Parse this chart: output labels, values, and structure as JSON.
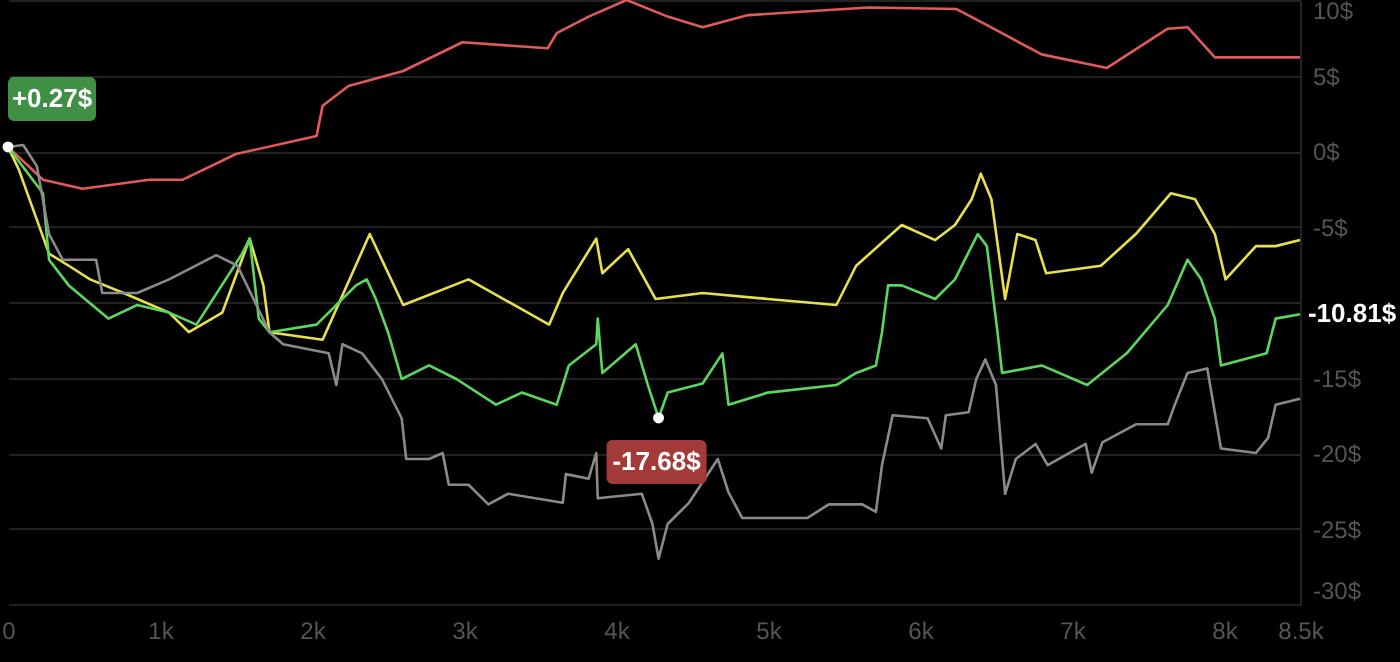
{
  "chart_data": {
    "type": "line",
    "xlim": [
      0,
      8500
    ],
    "xticks": [
      {
        "value": 0,
        "label": "0"
      },
      {
        "value": 1000,
        "label": "1k"
      },
      {
        "value": 2000,
        "label": "2k"
      },
      {
        "value": 3000,
        "label": "3k"
      },
      {
        "value": 4000,
        "label": "4k"
      },
      {
        "value": 5000,
        "label": "5k"
      },
      {
        "value": 6000,
        "label": "6k"
      },
      {
        "value": 7000,
        "label": "7k"
      },
      {
        "value": 8000,
        "label": "8k"
      },
      {
        "value": 8500,
        "label": "8.5k"
      }
    ],
    "ylim": [
      -30,
      10
    ],
    "yticks": [
      {
        "value": -30,
        "label": "-30$"
      },
      {
        "value": -25,
        "label": "-25$"
      },
      {
        "value": -20,
        "label": "-20$"
      },
      {
        "value": -15,
        "label": "-15$"
      },
      {
        "value": -10,
        "label": null
      },
      {
        "value": -5,
        "label": "-5$"
      },
      {
        "value": 0,
        "label": "0$"
      },
      {
        "value": 5,
        "label": "5$"
      },
      {
        "value": 10,
        "label": "10$"
      }
    ],
    "grid": "y",
    "series": [
      {
        "color": "#e05a5a",
        "x": [
          0,
          230,
          490,
          930,
          1150,
          1500,
          2030,
          2070,
          2240,
          2600,
          2990,
          3550,
          3610,
          3820,
          4070,
          4340,
          4570,
          4870,
          5660,
          6240,
          6410,
          6800,
          7230,
          7630,
          7760,
          7940,
          8500
        ],
        "values": [
          0.27,
          -1.9,
          -2.5,
          -1.9,
          -1.9,
          -0.2,
          1.0,
          3.0,
          4.3,
          5.3,
          7.2,
          6.8,
          7.8,
          8.9,
          10.0,
          8.9,
          8.2,
          9.0,
          9.5,
          9.4,
          8.5,
          6.4,
          5.5,
          8.1,
          8.2,
          6.2,
          6.2
        ]
      },
      {
        "color": "#e8e04a",
        "x": [
          0,
          70,
          270,
          400,
          540,
          760,
          1060,
          1190,
          1410,
          1590,
          1680,
          1720,
          2070,
          2380,
          2600,
          3030,
          3560,
          3650,
          3870,
          3910,
          4080,
          4260,
          4570,
          5000,
          5450,
          5580,
          5880,
          6100,
          6230,
          6340,
          6400,
          6470,
          6560,
          6640,
          6760,
          6830,
          7190,
          7420,
          7650,
          7810,
          7940,
          8010,
          8210,
          8340,
          8500
        ],
        "values": [
          0.27,
          -1.2,
          -6.8,
          -7.6,
          -8.5,
          -9.4,
          -10.7,
          -12.0,
          -10.7,
          -5.8,
          -8.9,
          -12.0,
          -12.5,
          -5.5,
          -10.2,
          -8.5,
          -11.5,
          -9.4,
          -5.8,
          -8.1,
          -6.5,
          -9.8,
          -9.4,
          -9.8,
          -10.2,
          -7.6,
          -4.9,
          -5.9,
          -4.9,
          -3.2,
          -1.5,
          -3.2,
          -9.8,
          -5.5,
          -5.9,
          -8.1,
          -7.6,
          -5.5,
          -2.8,
          -3.2,
          -5.5,
          -8.5,
          -6.3,
          -6.3,
          -5.9
        ]
      },
      {
        "color": "#5cd65c",
        "x": [
          0,
          230,
          270,
          400,
          660,
          850,
          1060,
          1240,
          1540,
          1590,
          1650,
          1720,
          2030,
          2290,
          2360,
          2420,
          2500,
          2590,
          2770,
          2950,
          3210,
          3380,
          3610,
          3690,
          3870,
          3880,
          3910,
          4130,
          4210,
          4280,
          4340,
          4570,
          4700,
          4740,
          5000,
          5450,
          5580,
          5710,
          5750,
          5790,
          5880,
          6100,
          6230,
          6380,
          6440,
          6510,
          6540,
          6800,
          7100,
          7360,
          7630,
          7760,
          7850,
          7940,
          7980,
          8280,
          8340,
          8500
        ],
        "values": [
          0.27,
          -2.8,
          -7.2,
          -8.9,
          -11.1,
          -10.2,
          -10.7,
          -11.5,
          -6.8,
          -5.8,
          -11.1,
          -12.0,
          -11.5,
          -8.9,
          -8.5,
          -9.8,
          -12.0,
          -15.1,
          -14.2,
          -15.1,
          -16.8,
          -16.0,
          -16.8,
          -14.2,
          -12.8,
          -11.1,
          -14.7,
          -12.8,
          -15.5,
          -17.68,
          -16.0,
          -15.4,
          -13.4,
          -16.8,
          -16.0,
          -15.5,
          -14.7,
          -14.2,
          -12.0,
          -8.9,
          -8.9,
          -9.8,
          -8.5,
          -5.5,
          -6.3,
          -12.0,
          -14.7,
          -14.2,
          -15.5,
          -13.4,
          -10.2,
          -7.2,
          -8.5,
          -11.1,
          -14.2,
          -13.4,
          -11.1,
          -10.81
        ]
      },
      {
        "color": "#8a8a8a",
        "x": [
          0,
          100,
          190,
          270,
          360,
          580,
          620,
          850,
          1060,
          1370,
          1510,
          1720,
          1810,
          2110,
          2160,
          2200,
          2330,
          2460,
          2590,
          2620,
          2770,
          2860,
          2900,
          3030,
          3160,
          3290,
          3650,
          3670,
          3820,
          3870,
          3880,
          4170,
          4240,
          4280,
          4340,
          4480,
          4670,
          4740,
          4830,
          5260,
          5400,
          5620,
          5710,
          5750,
          5820,
          6050,
          6140,
          6170,
          6320,
          6370,
          6430,
          6500,
          6560,
          6630,
          6760,
          6840,
          7090,
          7130,
          7200,
          7420,
          7630,
          7680,
          7760,
          7890,
          7980,
          8210,
          8290,
          8340,
          8500
        ],
        "values": [
          0.27,
          0.4,
          -1.0,
          -5.5,
          -7.2,
          -7.2,
          -9.4,
          -9.4,
          -8.5,
          -6.9,
          -7.6,
          -12.0,
          -12.8,
          -13.4,
          -15.5,
          -12.8,
          -13.4,
          -15.1,
          -17.7,
          -20.4,
          -20.4,
          -20.0,
          -22.1,
          -22.1,
          -23.4,
          -22.7,
          -23.3,
          -21.4,
          -21.7,
          -20.0,
          -23.0,
          -22.7,
          -24.7,
          -27.0,
          -24.7,
          -23.3,
          -20.4,
          -22.6,
          -24.3,
          -24.3,
          -23.4,
          -23.4,
          -23.9,
          -20.8,
          -17.5,
          -17.7,
          -19.7,
          -17.5,
          -17.3,
          -15.1,
          -13.8,
          -15.5,
          -22.7,
          -20.4,
          -19.4,
          -20.8,
          -19.4,
          -21.3,
          -19.3,
          -18.1,
          -18.1,
          -16.7,
          -14.7,
          -14.4,
          -19.7,
          -20.0,
          -19.0,
          -16.8,
          -16.4
        ]
      }
    ],
    "annotations": [
      {
        "text": "+0.27$",
        "x": 0,
        "y": 0.27
      },
      {
        "text": "-17.68$",
        "x": 4280,
        "y": -17.68
      },
      {
        "text": "-10.81$",
        "x": 8500,
        "y": -10.81
      }
    ]
  }
}
